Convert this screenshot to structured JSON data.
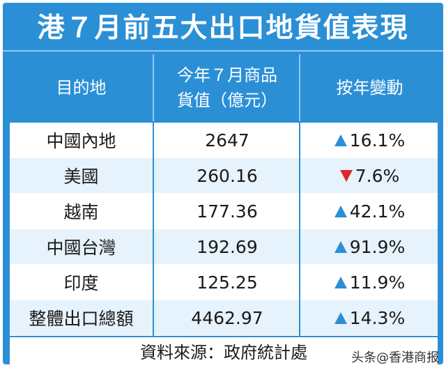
{
  "title": "港７月前五大出口地貨值表現",
  "headers": {
    "destination": "目的地",
    "value_line1": "今年７月商品",
    "value_line2": "貨值（億元）",
    "change": "按年變動"
  },
  "colors": {
    "header_bg": "#2b8fd6",
    "row_alt": "#e6f2fc",
    "up": "#2b8fd6",
    "down": "#e0252b"
  },
  "chart_data": {
    "type": "table",
    "title": "港７月前五大出口地貨值表現",
    "columns": [
      "目的地",
      "今年７月商品貨值（億元）",
      "按年變動"
    ],
    "rows": [
      {
        "destination": "中國內地",
        "value": "2647",
        "direction": "up",
        "change": "16.1%"
      },
      {
        "destination": "美國",
        "value": "260.16",
        "direction": "down",
        "change": "7.6%"
      },
      {
        "destination": "越南",
        "value": "177.36",
        "direction": "up",
        "change": "42.1%"
      },
      {
        "destination": "中國台灣",
        "value": "192.69",
        "direction": "up",
        "change": "91.9%"
      },
      {
        "destination": "印度",
        "value": "125.25",
        "direction": "up",
        "change": "11.9%"
      },
      {
        "destination": "整體出口總額",
        "value": "4462.97",
        "direction": "up",
        "change": "14.3%"
      }
    ]
  },
  "source": "資料來源：政府統計處",
  "watermark": "头条@香港商报"
}
